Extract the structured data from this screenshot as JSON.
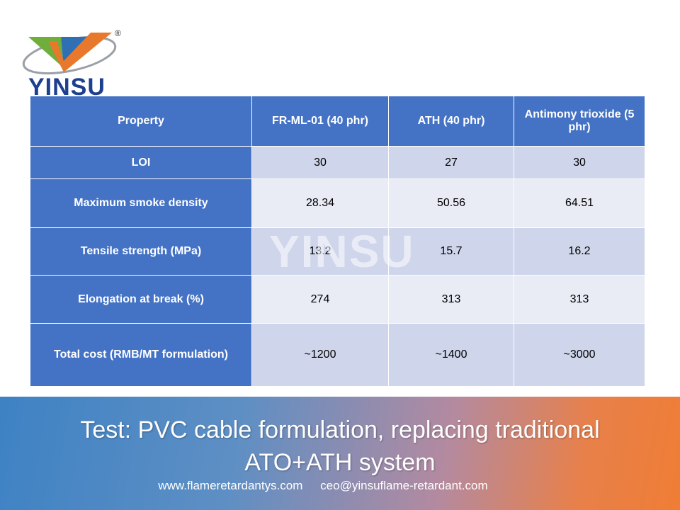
{
  "logo": {
    "text": "YINSU",
    "mark": "®"
  },
  "watermark": "YINSU",
  "table": {
    "header": [
      "Property",
      "FR-ML-01 (40 phr)",
      "ATH (40 phr)",
      "Antimony trioxide (5 phr)"
    ],
    "rows": [
      [
        "LOI",
        "30",
        "27",
        "30"
      ],
      [
        "Maximum smoke density",
        "28.34",
        "50.56",
        "64.51"
      ],
      [
        "Tensile strength (MPa)",
        "13.2",
        "15.7",
        "16.2"
      ],
      [
        "Elongation at break (%)",
        "274",
        "313",
        "313"
      ],
      [
        "Total cost (RMB/MT formulation)",
        "~1200",
        "~1400",
        "~3000"
      ]
    ]
  },
  "footer": {
    "title": "Test: PVC cable formulation, replacing traditional ATO+ATH system",
    "website": "www.flameretardantys.com",
    "email": "ceo@yinsuflame-retardant.com"
  }
}
